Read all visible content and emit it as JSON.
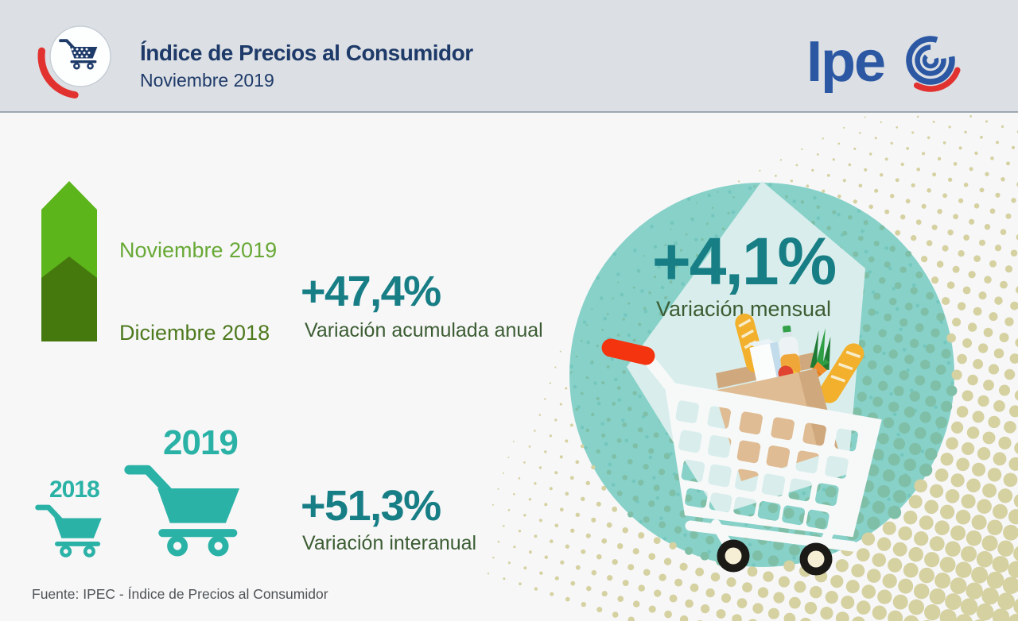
{
  "header": {
    "title": "Índice de Precios al Consumidor",
    "subtitle": "Noviembre 2019",
    "logo": {
      "text_part": "Ipe",
      "name": "ipec"
    }
  },
  "annual": {
    "value": "+47,4%",
    "label": "Variación acumulada anual",
    "top_label": "Noviembre 2019",
    "bottom_label": "Diciembre 2018"
  },
  "interannual": {
    "value": "+51,3%",
    "label": "Variación interanual",
    "year_small": "2018",
    "year_big": "2019"
  },
  "monthly": {
    "value": "+4,1%",
    "label": "Variación mensual"
  },
  "footer": {
    "source": "Fuente: IPEC - Índice de Precios al Consumidor"
  },
  "chart_data": {
    "type": "bar",
    "title": "Índice de Precios al Consumidor - Noviembre 2019",
    "categories": [
      "Variación mensual",
      "Variación acumulada anual",
      "Variación interanual"
    ],
    "values": [
      4.1,
      47.4,
      51.3
    ],
    "units": "%",
    "annotations": {
      "acumulada_period": "Diciembre 2018 a Noviembre 2019",
      "interanual_period": "2018 vs 2019"
    },
    "source": "IPEC"
  },
  "colors": {
    "bg_header": "#dce0e4",
    "bg_main": "#f7f7f8",
    "navy": "#1e3a69",
    "red": "#e23230",
    "logo_blue": "#2b57a3",
    "teal": "#2bb2a6",
    "teal_text": "#187e85",
    "green_light": "#5cb51b",
    "green_dark": "#45790e",
    "green_light_label": "#68a936",
    "green_dark_label": "#4e7a1e",
    "subtitle_green": "#3c5d33",
    "footer_gray": "#4f5356",
    "circle_teal": "#87d1c9",
    "pentagon": "#d9eeec",
    "halftone_khaki": "#d5d1a1",
    "halftone_sage": "#7fbfa7",
    "circle_dot": "#66bfb4",
    "handle_red": "#f4330f",
    "cart_white": "#f7f9f9",
    "wheel_black": "#1b1a17",
    "wheel_cream": "#f6efd5",
    "bag": "#dfbc93",
    "bag_shade": "#d0a87e"
  }
}
